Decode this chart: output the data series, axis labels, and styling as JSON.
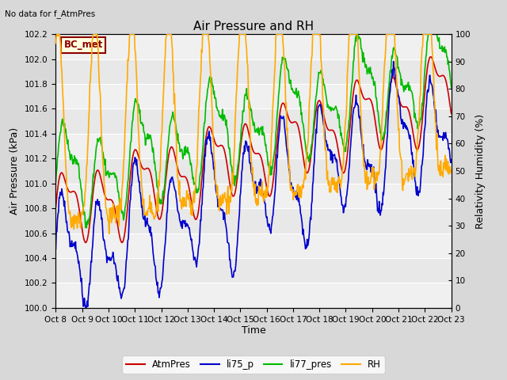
{
  "title": "Air Pressure and RH",
  "top_left_text": "No data for f_AtmPres",
  "box_label": "BC_met",
  "ylabel_left": "Air Pressure (kPa)",
  "ylabel_right": "Relativity Humidity (%)",
  "xlabel": "Time",
  "ylim_left": [
    100.0,
    102.2
  ],
  "ylim_right": [
    0,
    100
  ],
  "yticks_left": [
    100.0,
    100.2,
    100.4,
    100.6,
    100.8,
    101.0,
    101.2,
    101.4,
    101.6,
    101.8,
    102.0,
    102.2
  ],
  "yticks_right": [
    0,
    10,
    20,
    30,
    40,
    50,
    60,
    70,
    80,
    90,
    100
  ],
  "xtick_labels": [
    "Oct 8",
    "Oct 9",
    "Oct 10",
    "Oct 11",
    "Oct 12",
    "Oct 13",
    "Oct 14",
    "Oct 15",
    "Oct 16",
    "Oct 17",
    "Oct 18",
    "Oct 19",
    "Oct 20",
    "Oct 21",
    "Oct 22",
    "Oct 23"
  ],
  "n_xticks": 16,
  "colors": {
    "AtmPres": "#cc0000",
    "li75_p": "#0000cc",
    "li77_pres": "#00bb00",
    "RH": "#ffaa00"
  },
  "legend_labels": [
    "AtmPres",
    "li75_p",
    "li77_pres",
    "RH"
  ],
  "fig_bg_color": "#d8d8d8",
  "plot_bg_color": "#e8e8e8",
  "band_color_dark": "#d8d8d8",
  "band_color_light": "#f0f0f0",
  "grid_color": "#ffffff",
  "linewidth": 1.2
}
